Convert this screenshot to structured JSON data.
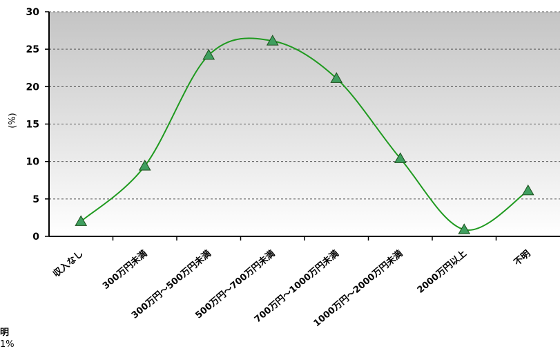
{
  "chart_data": {
    "type": "line",
    "smooth": true,
    "categories": [
      "収入なし",
      "300万円未満",
      "300万円～500万円未満",
      "500万円～700万円未満",
      "700万円～1000万円未満",
      "1000万円～2000万円未満",
      "2000万円以上",
      "不明"
    ],
    "series": [
      {
        "values": [
          2.0,
          9.4,
          24.2,
          26.1,
          21.1,
          10.4,
          0.9,
          6.1
        ]
      }
    ],
    "ylabel": "(%)",
    "ylim": [
      0,
      30
    ],
    "yticks": [
      0,
      5,
      10,
      15,
      20,
      25,
      30
    ],
    "grid": true,
    "background": "gradient gray to white",
    "colors": {
      "line": "#1f9a1f",
      "marker_fill": "#3f9f5f",
      "marker_stroke": "#1a4d1a",
      "gradient_top": "#c4c4c4",
      "gradient_bottom": "#ffffff"
    }
  },
  "fragments": {
    "label": "明",
    "value": "1%"
  }
}
